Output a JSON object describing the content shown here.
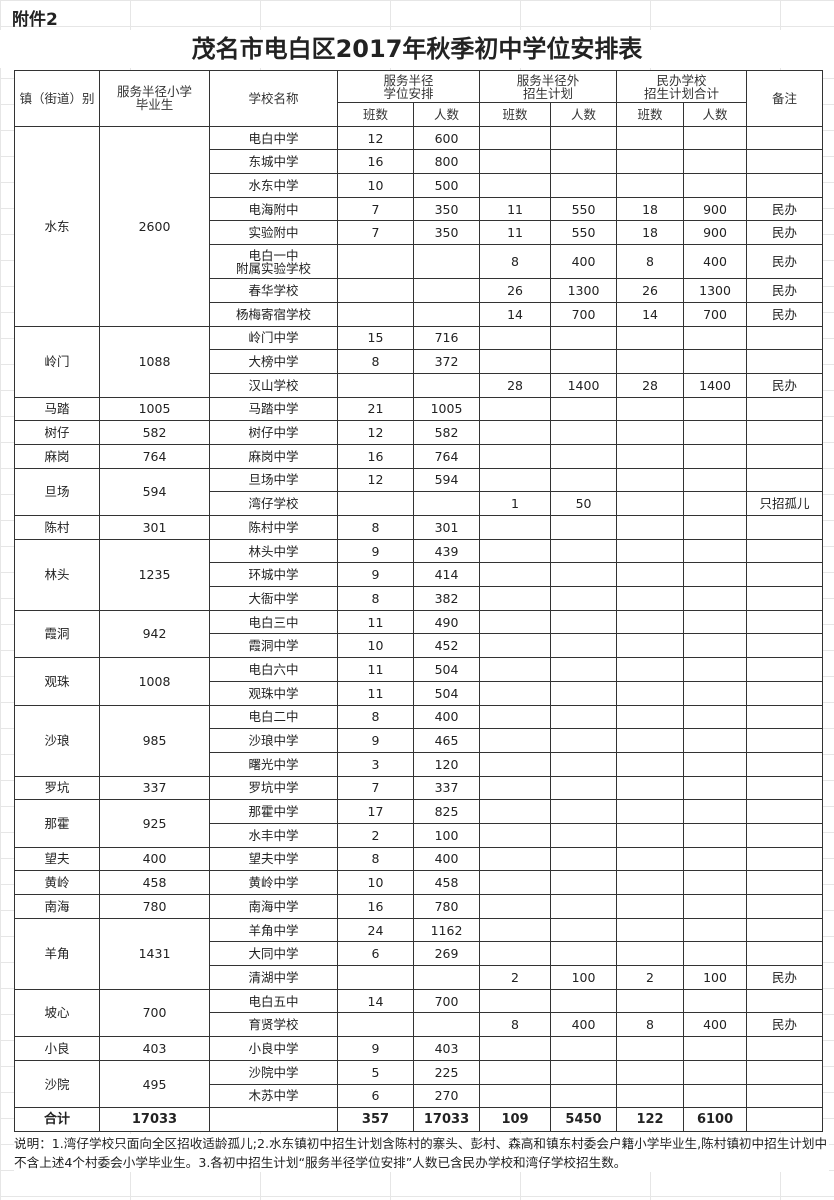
{
  "attachment_label": "附件2",
  "title": "茂名市电白区2017年秋季初中学位安排表",
  "headers": {
    "town": "镇（街道）别",
    "graduates": "服务半径小学\n毕业生",
    "school": "学校名称",
    "in_radius": "服务半径\n学位安排",
    "out_radius": "服务半径外\n招生计划",
    "private_total": "民办学校\n招生计划合计",
    "note": "备注",
    "classes": "班数",
    "people": "人数"
  },
  "groups": [
    {
      "town": "水东",
      "graduates": "2600",
      "schools": [
        [
          "电白中学",
          "12",
          "600",
          "",
          "",
          "",
          "",
          ""
        ],
        [
          "东城中学",
          "16",
          "800",
          "",
          "",
          "",
          "",
          ""
        ],
        [
          "水东中学",
          "10",
          "500",
          "",
          "",
          "",
          "",
          ""
        ],
        [
          "电海附中",
          "7",
          "350",
          "11",
          "550",
          "18",
          "900",
          "民办"
        ],
        [
          "实验附中",
          "7",
          "350",
          "11",
          "550",
          "18",
          "900",
          "民办"
        ],
        [
          "电白一中\n附属实验学校",
          "",
          "",
          "8",
          "400",
          "8",
          "400",
          "民办"
        ],
        [
          "春华学校",
          "",
          "",
          "26",
          "1300",
          "26",
          "1300",
          "民办"
        ],
        [
          "杨梅寄宿学校",
          "",
          "",
          "14",
          "700",
          "14",
          "700",
          "民办"
        ]
      ]
    },
    {
      "town": "岭门",
      "graduates": "1088",
      "schools": [
        [
          "岭门中学",
          "15",
          "716",
          "",
          "",
          "",
          "",
          ""
        ],
        [
          "大榜中学",
          "8",
          "372",
          "",
          "",
          "",
          "",
          ""
        ],
        [
          "汉山学校",
          "",
          "",
          "28",
          "1400",
          "28",
          "1400",
          "民办"
        ]
      ]
    },
    {
      "town": "马踏",
      "graduates": "1005",
      "schools": [
        [
          "马踏中学",
          "21",
          "1005",
          "",
          "",
          "",
          "",
          ""
        ]
      ]
    },
    {
      "town": "树仔",
      "graduates": "582",
      "schools": [
        [
          "树仔中学",
          "12",
          "582",
          "",
          "",
          "",
          "",
          ""
        ]
      ]
    },
    {
      "town": "麻岗",
      "graduates": "764",
      "schools": [
        [
          "麻岗中学",
          "16",
          "764",
          "",
          "",
          "",
          "",
          ""
        ]
      ]
    },
    {
      "town": "旦场",
      "graduates": "594",
      "schools": [
        [
          "旦场中学",
          "12",
          "594",
          "",
          "",
          "",
          "",
          ""
        ],
        [
          "湾仔学校",
          "",
          "",
          "1",
          "50",
          "",
          "",
          "只招孤儿"
        ]
      ]
    },
    {
      "town": "陈村",
      "graduates": "301",
      "schools": [
        [
          "陈村中学",
          "8",
          "301",
          "",
          "",
          "",
          "",
          ""
        ]
      ]
    },
    {
      "town": "林头",
      "graduates": "1235",
      "schools": [
        [
          "林头中学",
          "9",
          "439",
          "",
          "",
          "",
          "",
          ""
        ],
        [
          "环城中学",
          "9",
          "414",
          "",
          "",
          "",
          "",
          ""
        ],
        [
          "大衙中学",
          "8",
          "382",
          "",
          "",
          "",
          "",
          ""
        ]
      ]
    },
    {
      "town": "霞洞",
      "graduates": "942",
      "schools": [
        [
          "电白三中",
          "11",
          "490",
          "",
          "",
          "",
          "",
          ""
        ],
        [
          "霞洞中学",
          "10",
          "452",
          "",
          "",
          "",
          "",
          ""
        ]
      ]
    },
    {
      "town": "观珠",
      "graduates": "1008",
      "schools": [
        [
          "电白六中",
          "11",
          "504",
          "",
          "",
          "",
          "",
          ""
        ],
        [
          "观珠中学",
          "11",
          "504",
          "",
          "",
          "",
          "",
          ""
        ]
      ]
    },
    {
      "town": "沙琅",
      "graduates": "985",
      "schools": [
        [
          "电白二中",
          "8",
          "400",
          "",
          "",
          "",
          "",
          ""
        ],
        [
          "沙琅中学",
          "9",
          "465",
          "",
          "",
          "",
          "",
          ""
        ],
        [
          "曙光中学",
          "3",
          "120",
          "",
          "",
          "",
          "",
          ""
        ]
      ]
    },
    {
      "town": "罗坑",
      "graduates": "337",
      "schools": [
        [
          "罗坑中学",
          "7",
          "337",
          "",
          "",
          "",
          "",
          ""
        ]
      ]
    },
    {
      "town": "那霍",
      "graduates": "925",
      "schools": [
        [
          "那霍中学",
          "17",
          "825",
          "",
          "",
          "",
          "",
          ""
        ],
        [
          "水丰中学",
          "2",
          "100",
          "",
          "",
          "",
          "",
          ""
        ]
      ]
    },
    {
      "town": "望夫",
      "graduates": "400",
      "schools": [
        [
          "望夫中学",
          "8",
          "400",
          "",
          "",
          "",
          "",
          ""
        ]
      ]
    },
    {
      "town": "黄岭",
      "graduates": "458",
      "schools": [
        [
          "黄岭中学",
          "10",
          "458",
          "",
          "",
          "",
          "",
          ""
        ]
      ]
    },
    {
      "town": "南海",
      "graduates": "780",
      "schools": [
        [
          "南海中学",
          "16",
          "780",
          "",
          "",
          "",
          "",
          ""
        ]
      ]
    },
    {
      "town": "羊角",
      "graduates": "1431",
      "schools": [
        [
          "羊角中学",
          "24",
          "1162",
          "",
          "",
          "",
          "",
          ""
        ],
        [
          "大同中学",
          "6",
          "269",
          "",
          "",
          "",
          "",
          ""
        ],
        [
          "清湖中学",
          "",
          "",
          "2",
          "100",
          "2",
          "100",
          "民办"
        ]
      ]
    },
    {
      "town": "坡心",
      "graduates": "700",
      "schools": [
        [
          "电白五中",
          "14",
          "700",
          "",
          "",
          "",
          "",
          ""
        ],
        [
          "育贤学校",
          "",
          "",
          "8",
          "400",
          "8",
          "400",
          "民办"
        ]
      ]
    },
    {
      "town": "小良",
      "graduates": "403",
      "schools": [
        [
          "小良中学",
          "9",
          "403",
          "",
          "",
          "",
          "",
          ""
        ]
      ]
    },
    {
      "town": "沙院",
      "graduates": "495",
      "schools": [
        [
          "沙院中学",
          "5",
          "225",
          "",
          "",
          "",
          "",
          ""
        ],
        [
          "木苏中学",
          "6",
          "270",
          "",
          "",
          "",
          "",
          ""
        ]
      ]
    }
  ],
  "total": [
    "合计",
    "17033",
    "",
    "357",
    "17033",
    "109",
    "5450",
    "122",
    "6100",
    ""
  ],
  "footnote": "说明：1.湾仔学校只面向全区招收适龄孤儿;2.水东镇初中招生计划含陈村的寨头、彭村、森高和镇东村委会户籍小学毕业生,陈村镇初中招生计划中不含上述4个村委会小学毕业生。3.各初中招生计划“服务半径学位安排”人数已含民办学校和湾仔学校招生数。"
}
